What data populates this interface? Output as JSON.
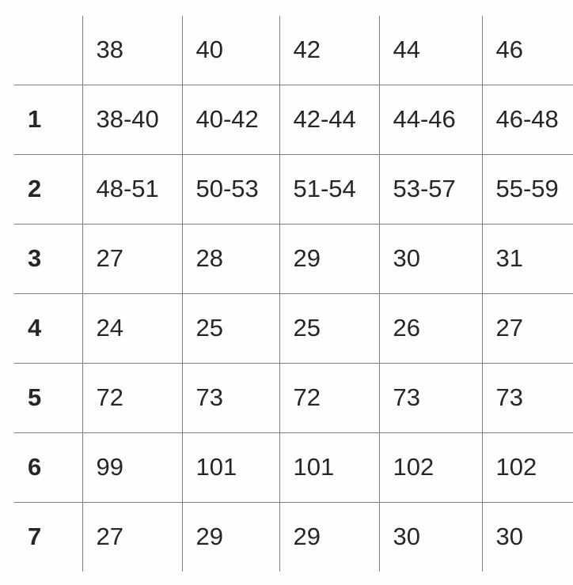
{
  "table": {
    "name": "size-chart",
    "columns": [
      "",
      "38",
      "40",
      "42",
      "44",
      "46"
    ],
    "rows": [
      {
        "label": "1",
        "values": [
          "38-40",
          "40-42",
          "42-44",
          "44-46",
          "46-48"
        ]
      },
      {
        "label": "2",
        "values": [
          "48-51",
          "50-53",
          "51-54",
          "53-57",
          "55-59"
        ]
      },
      {
        "label": "3",
        "values": [
          "27",
          "28",
          "29",
          "30",
          "31"
        ]
      },
      {
        "label": "4",
        "values": [
          "24",
          "25",
          "25",
          "26",
          "27"
        ]
      },
      {
        "label": "5",
        "values": [
          "72",
          "73",
          "72",
          "73",
          "73"
        ]
      },
      {
        "label": "6",
        "values": [
          "99",
          "101",
          "101",
          "102",
          "102"
        ]
      },
      {
        "label": "7",
        "values": [
          "27",
          "29",
          "29",
          "30",
          "30"
        ]
      }
    ],
    "style": {
      "border_color": "#7d7d7d",
      "text_color": "#262626",
      "background_color": "#fefefe"
    }
  }
}
